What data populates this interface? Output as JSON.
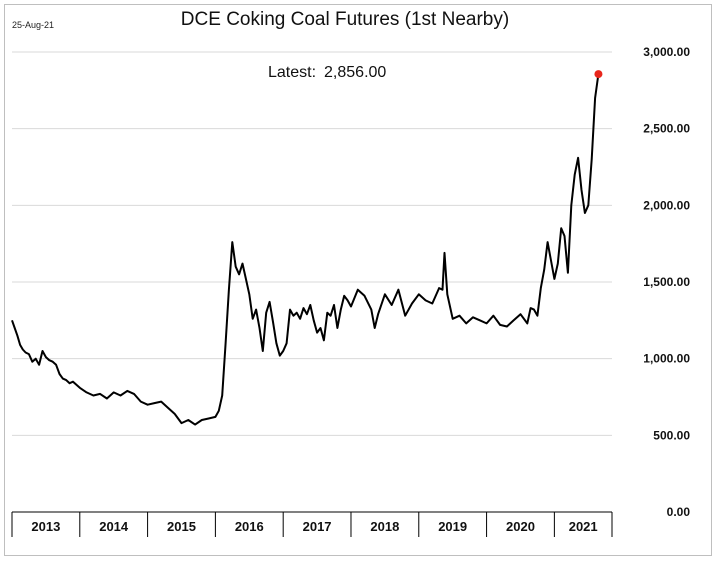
{
  "header": {
    "date_stamp": "25-Aug-21",
    "title": "DCE Coking Coal Futures (1st Nearby)",
    "latest_label": "Latest:",
    "latest_value": "2,856.00"
  },
  "colors": {
    "line": "#000000",
    "latest_marker": "#e8261c",
    "gridline": "#d9d9d9"
  },
  "chart_data": {
    "type": "line",
    "title": "DCE Coking Coal Futures (1st Nearby)",
    "xlabel": "",
    "ylabel": "",
    "x_categories": [
      "2013",
      "2014",
      "2015",
      "2016",
      "2017",
      "2018",
      "2019",
      "2020",
      "2021"
    ],
    "ylim": [
      0,
      3000
    ],
    "yticks": [
      0,
      500,
      1000,
      1500,
      2000,
      2500,
      3000
    ],
    "ytick_labels": [
      "0.00",
      "500.00",
      "1,000.00",
      "1,500.00",
      "2,000.00",
      "2,500.00",
      "3,000.00"
    ],
    "grid": "horizontal",
    "y_axis_side": "right",
    "series": [
      {
        "x": [
          2013.0,
          2013.04,
          2013.08,
          2013.12,
          2013.16,
          2013.2,
          2013.25,
          2013.3,
          2013.35,
          2013.4,
          2013.45,
          2013.5,
          2013.55,
          2013.6,
          2013.65,
          2013.7,
          2013.75,
          2013.8,
          2013.85,
          2013.9,
          2013.95,
          2014.0,
          2014.1,
          2014.2,
          2014.3,
          2014.4,
          2014.5,
          2014.6,
          2014.7,
          2014.8,
          2014.9,
          2015.0,
          2015.1,
          2015.2,
          2015.3,
          2015.4,
          2015.5,
          2015.6,
          2015.7,
          2015.8,
          2015.9,
          2016.0,
          2016.05,
          2016.1,
          2016.15,
          2016.2,
          2016.25,
          2016.3,
          2016.35,
          2016.4,
          2016.45,
          2016.5,
          2016.55,
          2016.6,
          2016.65,
          2016.7,
          2016.75,
          2016.8,
          2016.85,
          2016.9,
          2016.95,
          2017.0,
          2017.05,
          2017.1,
          2017.15,
          2017.2,
          2017.25,
          2017.3,
          2017.35,
          2017.4,
          2017.45,
          2017.5,
          2017.55,
          2017.6,
          2017.65,
          2017.7,
          2017.75,
          2017.8,
          2017.85,
          2017.9,
          2017.95,
          2018.0,
          2018.1,
          2018.2,
          2018.3,
          2018.35,
          2018.4,
          2018.5,
          2018.6,
          2018.7,
          2018.8,
          2018.9,
          2019.0,
          2019.1,
          2019.2,
          2019.3,
          2019.35,
          2019.38,
          2019.42,
          2019.5,
          2019.6,
          2019.7,
          2019.8,
          2019.9,
          2020.0,
          2020.1,
          2020.2,
          2020.3,
          2020.4,
          2020.5,
          2020.6,
          2020.65,
          2020.7,
          2020.75,
          2020.8,
          2020.85,
          2020.9,
          2020.95,
          2021.0,
          2021.05,
          2021.1,
          2021.15,
          2021.2,
          2021.25,
          2021.3,
          2021.35,
          2021.4,
          2021.45,
          2021.5,
          2021.55,
          2021.6,
          2021.65
        ],
        "y": [
          1250,
          1200,
          1150,
          1090,
          1060,
          1040,
          1030,
          980,
          1000,
          960,
          1050,
          1010,
          990,
          980,
          960,
          900,
          870,
          860,
          840,
          850,
          830,
          810,
          780,
          760,
          770,
          740,
          780,
          760,
          790,
          770,
          720,
          700,
          710,
          720,
          680,
          640,
          580,
          600,
          570,
          600,
          610,
          620,
          660,
          760,
          1100,
          1450,
          1760,
          1600,
          1550,
          1620,
          1520,
          1420,
          1260,
          1320,
          1200,
          1050,
          1300,
          1370,
          1240,
          1100,
          1020,
          1050,
          1100,
          1320,
          1280,
          1300,
          1260,
          1330,
          1290,
          1350,
          1250,
          1170,
          1200,
          1120,
          1300,
          1280,
          1350,
          1200,
          1320,
          1410,
          1380,
          1340,
          1450,
          1410,
          1320,
          1200,
          1290,
          1420,
          1350,
          1450,
          1280,
          1360,
          1420,
          1380,
          1360,
          1460,
          1450,
          1690,
          1420,
          1260,
          1280,
          1230,
          1270,
          1250,
          1230,
          1280,
          1220,
          1210,
          1250,
          1290,
          1230,
          1330,
          1320,
          1280,
          1460,
          1580,
          1760,
          1640,
          1520,
          1620,
          1850,
          1800,
          1560,
          2000,
          2200,
          2310,
          2100,
          1950,
          2000,
          2300,
          2700,
          2856
        ]
      }
    ],
    "latest_point": {
      "x": 2021.65,
      "y": 2856
    }
  }
}
